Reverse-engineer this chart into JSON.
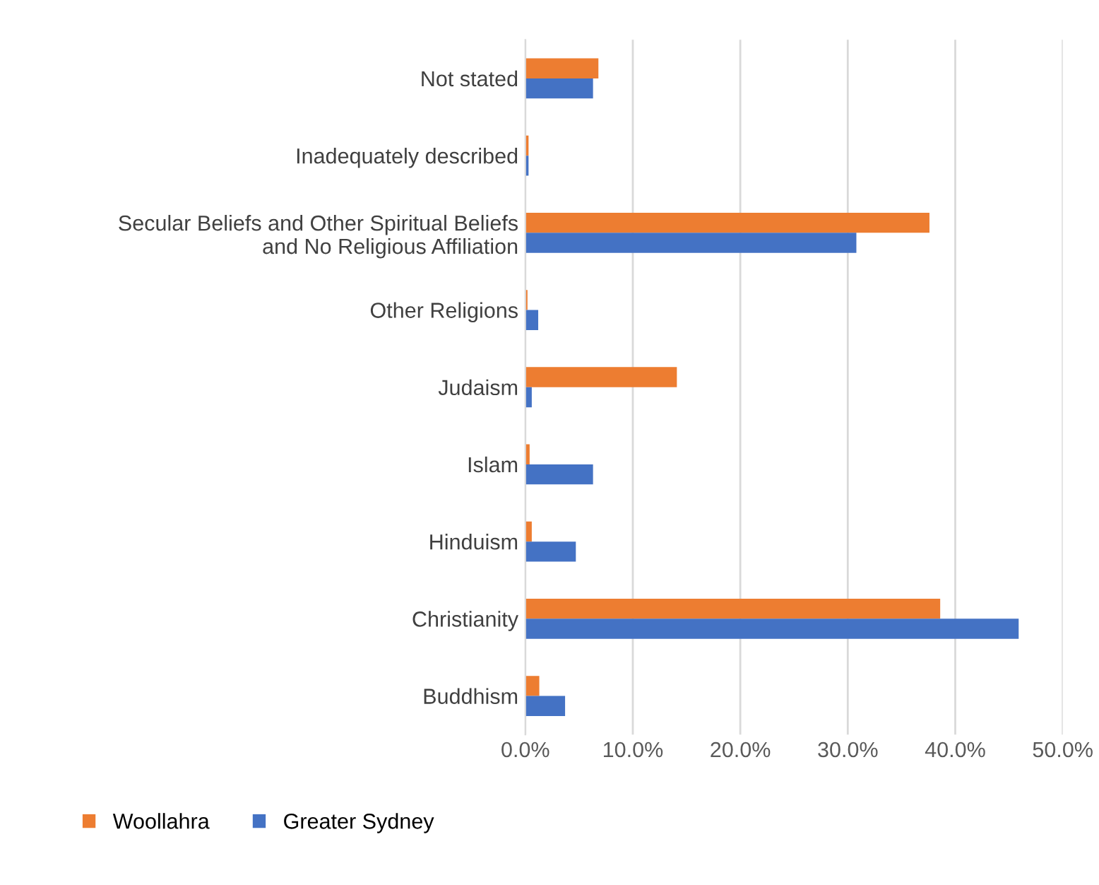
{
  "chart_data": {
    "type": "bar",
    "orientation": "horizontal",
    "categories": [
      "Not stated",
      "Inadequately described",
      "Secular Beliefs and Other Spiritual Beliefs\nand No Religious Affiliation",
      "Other Religions",
      "Judaism",
      "Islam",
      "Hinduism",
      "Christianity",
      "Buddhism"
    ],
    "series": [
      {
        "name": "Woollahra",
        "color": "#ed7d31",
        "values": [
          6.8,
          0.3,
          37.6,
          0.2,
          14.1,
          0.4,
          0.6,
          38.6,
          1.3
        ]
      },
      {
        "name": "Greater Sydney",
        "color": "#4472c4",
        "values": [
          6.3,
          0.3,
          30.8,
          1.2,
          0.6,
          6.3,
          4.7,
          45.9,
          3.7
        ]
      }
    ],
    "xlim": [
      0,
      50
    ],
    "xticks": [
      {
        "value": 0,
        "label": "0.0%"
      },
      {
        "value": 10,
        "label": "10.0%"
      },
      {
        "value": 20,
        "label": "20.0%"
      },
      {
        "value": 30,
        "label": "30.0%"
      },
      {
        "value": 40,
        "label": "40.0%"
      },
      {
        "value": 50,
        "label": "50.0%"
      }
    ],
    "grid": "x",
    "legend": "bottom"
  }
}
